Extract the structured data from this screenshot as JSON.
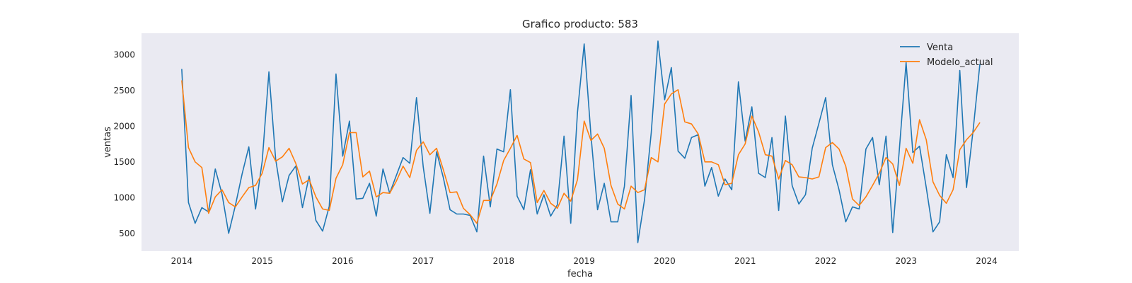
{
  "chart_data": {
    "type": "line",
    "title": "Grafico producto: 583",
    "xlabel": "fecha",
    "ylabel": "ventas",
    "xlim": [
      2013.5,
      2024.4
    ],
    "ylim": [
      250,
      3300
    ],
    "grid": false,
    "legend_position": "top-right",
    "x_ticks": [
      2014,
      2015,
      2016,
      2017,
      2018,
      2019,
      2020,
      2021,
      2022,
      2023,
      2024
    ],
    "y_ticks": [
      500,
      1000,
      1500,
      2000,
      2500,
      3000
    ],
    "background": "#eaeaf2",
    "x": [
      "2014-01",
      "2014-02",
      "2014-03",
      "2014-04",
      "2014-05",
      "2014-06",
      "2014-07",
      "2014-08",
      "2014-09",
      "2014-10",
      "2014-11",
      "2014-12",
      "2015-01",
      "2015-02",
      "2015-03",
      "2015-04",
      "2015-05",
      "2015-06",
      "2015-07",
      "2015-08",
      "2015-09",
      "2015-10",
      "2015-11",
      "2015-12",
      "2016-01",
      "2016-02",
      "2016-03",
      "2016-04",
      "2016-05",
      "2016-06",
      "2016-07",
      "2016-08",
      "2016-09",
      "2016-10",
      "2016-11",
      "2016-12",
      "2017-01",
      "2017-02",
      "2017-03",
      "2017-04",
      "2017-05",
      "2017-06",
      "2017-07",
      "2017-08",
      "2017-09",
      "2017-10",
      "2017-11",
      "2017-12",
      "2018-01",
      "2018-02",
      "2018-03",
      "2018-04",
      "2018-05",
      "2018-06",
      "2018-07",
      "2018-08",
      "2018-09",
      "2018-10",
      "2018-11",
      "2018-12",
      "2019-01",
      "2019-02",
      "2019-03",
      "2019-04",
      "2019-05",
      "2019-06",
      "2019-07",
      "2019-08",
      "2019-09",
      "2019-10",
      "2019-11",
      "2019-12",
      "2020-01",
      "2020-02",
      "2020-03",
      "2020-04",
      "2020-05",
      "2020-06",
      "2020-07",
      "2020-08",
      "2020-09",
      "2020-10",
      "2020-11",
      "2020-12",
      "2021-01",
      "2021-02",
      "2021-03",
      "2021-04",
      "2021-05",
      "2021-06",
      "2021-07",
      "2021-08",
      "2021-09",
      "2021-10",
      "2021-11",
      "2021-12",
      "2022-01",
      "2022-02",
      "2022-03",
      "2022-04",
      "2022-05",
      "2022-06",
      "2022-07",
      "2022-08",
      "2022-09",
      "2022-10",
      "2022-11",
      "2022-12",
      "2023-01",
      "2023-02",
      "2023-03",
      "2023-04",
      "2023-05",
      "2023-06",
      "2023-07",
      "2023-08",
      "2023-09",
      "2023-10",
      "2023-11",
      "2023-12"
    ],
    "series": [
      {
        "name": "Venta",
        "color": "#1f77b4",
        "values": [
          2800,
          930,
          640,
          860,
          800,
          1400,
          1050,
          500,
          890,
          1330,
          1710,
          840,
          1510,
          2760,
          1540,
          940,
          1310,
          1440,
          860,
          1300,
          680,
          530,
          880,
          2730,
          1580,
          2070,
          980,
          990,
          1200,
          740,
          1400,
          1060,
          1310,
          1560,
          1480,
          2400,
          1430,
          780,
          1640,
          1280,
          830,
          770,
          770,
          750,
          520,
          1580,
          870,
          1680,
          1640,
          2510,
          1020,
          830,
          1390,
          770,
          1040,
          740,
          900,
          1860,
          640,
          2190,
          3150,
          1880,
          830,
          1200,
          660,
          660,
          1160,
          2430,
          370,
          970,
          1910,
          3190,
          2370,
          2820,
          1650,
          1550,
          1840,
          1880,
          1160,
          1420,
          1020,
          1260,
          1110,
          2620,
          1790,
          2270,
          1340,
          1280,
          1840,
          820,
          2140,
          1170,
          910,
          1040,
          1690,
          2040,
          2400,
          1460,
          1110,
          660,
          870,
          840,
          1680,
          1840,
          1180,
          1860,
          510,
          1690,
          2890,
          1630,
          1720,
          1140,
          520,
          660,
          1600,
          1280,
          2780,
          1140,
          1950,
          2870
        ]
      },
      {
        "name": "Modelo_actual",
        "color": "#ff7f0e",
        "values": [
          2640,
          1700,
          1500,
          1420,
          780,
          1010,
          1110,
          930,
          870,
          1010,
          1140,
          1170,
          1340,
          1700,
          1510,
          1570,
          1690,
          1480,
          1190,
          1250,
          1010,
          840,
          820,
          1270,
          1460,
          1910,
          1910,
          1290,
          1370,
          1010,
          1070,
          1060,
          1230,
          1440,
          1280,
          1660,
          1780,
          1600,
          1690,
          1390,
          1070,
          1080,
          850,
          760,
          640,
          960,
          960,
          1190,
          1520,
          1690,
          1870,
          1540,
          1490,
          930,
          1100,
          920,
          850,
          1060,
          950,
          1250,
          2070,
          1800,
          1890,
          1690,
          1170,
          910,
          840,
          1160,
          1070,
          1110,
          1560,
          1500,
          2310,
          2450,
          2510,
          2060,
          2030,
          1890,
          1500,
          1500,
          1460,
          1180,
          1200,
          1600,
          1750,
          2140,
          1920,
          1600,
          1580,
          1260,
          1520,
          1460,
          1290,
          1280,
          1260,
          1290,
          1700,
          1770,
          1680,
          1440,
          980,
          890,
          1010,
          1170,
          1340,
          1560,
          1470,
          1170,
          1690,
          1480,
          2090,
          1810,
          1220,
          1030,
          920,
          1110,
          1670,
          1810,
          1910,
          2050
        ]
      }
    ]
  }
}
